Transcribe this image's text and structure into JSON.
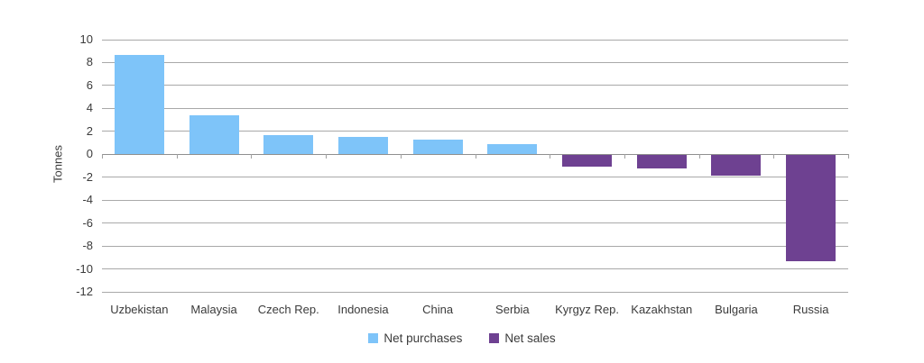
{
  "chart_data": {
    "type": "bar",
    "title": "",
    "xlabel": "",
    "ylabel": "Tonnes",
    "categories": [
      "Uzbekistan",
      "Malaysia",
      "Czech Rep.",
      "Indonesia",
      "China",
      "Serbia",
      "Kyrgyz Rep.",
      "Kazakhstan",
      "Bulgaria",
      "Russia"
    ],
    "series": [
      {
        "name": "Net purchases",
        "color": "#7ec4f9",
        "values": [
          8.7,
          3.4,
          1.7,
          1.5,
          1.3,
          0.9,
          null,
          null,
          null,
          null
        ]
      },
      {
        "name": "Net sales",
        "color": "#6e4191",
        "values": [
          null,
          null,
          null,
          null,
          null,
          null,
          -1.1,
          -1.2,
          -1.9,
          -9.3
        ]
      }
    ],
    "ylim": [
      -12,
      10
    ],
    "ytick_step": 2,
    "yticks": [
      10,
      8,
      6,
      4,
      2,
      0,
      -2,
      -4,
      -6,
      -8,
      -10,
      -12
    ],
    "grid": true,
    "legend_position": "bottom"
  },
  "colors": {
    "net_purchases": "#7ec4f9",
    "net_sales": "#6e4191",
    "gridline": "#a9a9a9",
    "text": "#3b3b3b",
    "background": "#ffffff"
  }
}
